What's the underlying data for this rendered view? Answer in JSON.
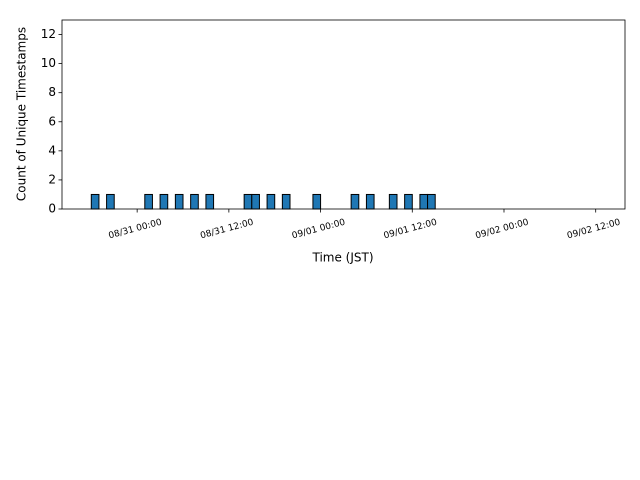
{
  "chart_data": {
    "type": "bar",
    "x_label": "Time (JST)",
    "y_label": "Count of Unique Timestamps",
    "x": [
      "08/30 18:00",
      "08/30 20:00",
      "08/31 01:00",
      "08/31 03:00",
      "08/31 05:00",
      "08/31 07:00",
      "08/31 09:00",
      "08/31 14:00",
      "08/31 15:00",
      "08/31 17:00",
      "08/31 19:00",
      "08/31 23:00",
      "09/01 04:00",
      "09/01 06:00",
      "09/01 09:00",
      "09/01 11:00",
      "09/01 13:00",
      "09/01 14:00"
    ],
    "values": [
      1,
      1,
      1,
      1,
      1,
      1,
      1,
      1,
      1,
      1,
      1,
      1,
      1,
      1,
      1,
      1,
      1,
      1
    ],
    "color": "#1f77b4",
    "xlim": [
      "08/30 14:10",
      "09/02 15:50"
    ],
    "xticks": [
      "08/31 00:00",
      "08/31 12:00",
      "09/01 00:00",
      "09/01 12:00",
      "09/02 00:00",
      "09/02 12:00"
    ],
    "ylim": [
      0,
      13
    ],
    "yticks": [
      0,
      2,
      4,
      6,
      8,
      10,
      12
    ]
  }
}
